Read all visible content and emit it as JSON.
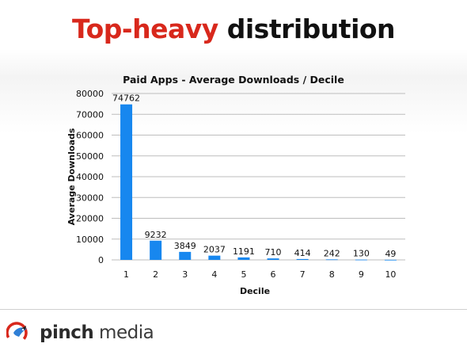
{
  "slide": {
    "title_accent": "Top-heavy",
    "title_rest": " distribution"
  },
  "colors": {
    "accent": "#d8281c",
    "bar": "#1787ef",
    "grid": "#bdbdbd"
  },
  "chart_data": {
    "type": "bar",
    "title": "Paid Apps - Average Downloads / Decile",
    "xlabel": "Decile",
    "ylabel": "Average Downloads",
    "categories": [
      "1",
      "2",
      "3",
      "4",
      "5",
      "6",
      "7",
      "8",
      "9",
      "10"
    ],
    "values": [
      74762,
      9232,
      3849,
      2037,
      1191,
      710,
      414,
      242,
      130,
      49
    ],
    "data_labels": [
      "74762",
      "9232",
      "3849",
      "2037",
      "1191",
      "710",
      "414",
      "242",
      "130",
      "49"
    ],
    "ylim": [
      0,
      80000
    ],
    "yticks": [
      0,
      10000,
      20000,
      30000,
      40000,
      50000,
      60000,
      70000,
      80000
    ],
    "ytick_labels": [
      "0",
      "10000",
      "20000",
      "30000",
      "40000",
      "50000",
      "60000",
      "70000",
      "80000"
    ],
    "grid": true,
    "legend": "none"
  },
  "footer": {
    "logo_icon": "pinch-bird-icon",
    "logo_bold": "pinch",
    "logo_rest": " media"
  }
}
